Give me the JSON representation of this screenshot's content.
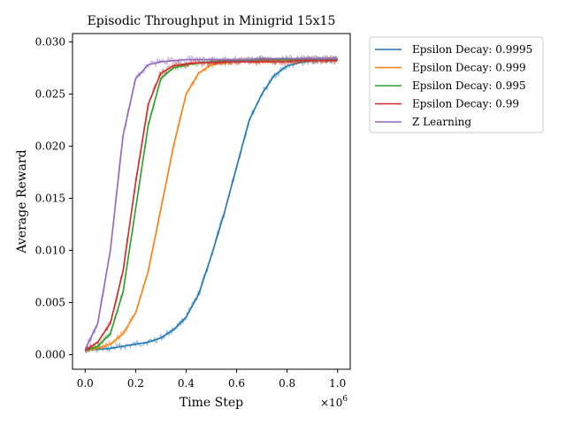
{
  "chart_data": {
    "type": "line",
    "title": "Episodic Throughput in Minigrid 15x15",
    "xlabel": "Time Step",
    "ylabel": "Average Reward",
    "x_multiplier_label": "×10^6",
    "x_multiplier_base": "×10",
    "x_multiplier_exp": "6",
    "xlim": [
      -0.05,
      1.05
    ],
    "ylim": [
      -0.0014,
      0.0308
    ],
    "x_ticks": [
      0.0,
      0.2,
      0.4,
      0.6,
      0.8,
      1.0
    ],
    "x_tick_labels": [
      "0.0",
      "0.2",
      "0.4",
      "0.6",
      "0.8",
      "1.0"
    ],
    "y_ticks": [
      0.0,
      0.005,
      0.01,
      0.015,
      0.02,
      0.025,
      0.03
    ],
    "y_tick_labels": [
      "0.000",
      "0.005",
      "0.010",
      "0.015",
      "0.020",
      "0.025",
      "0.030"
    ],
    "grid": false,
    "legend_position": "outside-right",
    "x": [
      0.0,
      0.05,
      0.1,
      0.15,
      0.2,
      0.25,
      0.3,
      0.35,
      0.4,
      0.45,
      0.5,
      0.55,
      0.6,
      0.65,
      0.7,
      0.75,
      0.8,
      0.85,
      0.9,
      0.95,
      1.0
    ],
    "series": [
      {
        "name": "Epsilon Decay: 0.9995",
        "color": "#1f77b4",
        "values": [
          0.0005,
          0.0005,
          0.0006,
          0.0008,
          0.001,
          0.0012,
          0.0016,
          0.0024,
          0.0036,
          0.0058,
          0.0095,
          0.0135,
          0.018,
          0.0225,
          0.025,
          0.0268,
          0.0277,
          0.028,
          0.0282,
          0.0283,
          0.0283
        ]
      },
      {
        "name": "Epsilon Decay: 0.999",
        "color": "#ff7f0e",
        "values": [
          0.0004,
          0.0006,
          0.001,
          0.002,
          0.004,
          0.008,
          0.014,
          0.02,
          0.025,
          0.027,
          0.0278,
          0.028,
          0.0281,
          0.0282,
          0.0282,
          0.0282,
          0.0282,
          0.0282,
          0.0283,
          0.0283,
          0.0283
        ]
      },
      {
        "name": "Epsilon Decay: 0.995",
        "color": "#2ca02c",
        "values": [
          0.0004,
          0.0008,
          0.002,
          0.006,
          0.014,
          0.022,
          0.0265,
          0.0275,
          0.0278,
          0.028,
          0.0281,
          0.0282,
          0.0282,
          0.0282,
          0.0283,
          0.0283,
          0.0283,
          0.0283,
          0.0283,
          0.0283,
          0.0283
        ]
      },
      {
        "name": "Epsilon Decay: 0.99",
        "color": "#d62728",
        "values": [
          0.0004,
          0.0012,
          0.003,
          0.008,
          0.0165,
          0.024,
          0.027,
          0.0277,
          0.0279,
          0.028,
          0.028,
          0.0281,
          0.0281,
          0.0281,
          0.0281,
          0.0281,
          0.0281,
          0.0282,
          0.0282,
          0.0282,
          0.0282
        ]
      },
      {
        "name": "Z Learning",
        "color": "#9467bd",
        "values": [
          0.0005,
          0.003,
          0.01,
          0.021,
          0.0265,
          0.0278,
          0.0281,
          0.0282,
          0.0283,
          0.0283,
          0.0283,
          0.0283,
          0.0283,
          0.0283,
          0.0284,
          0.0284,
          0.0284,
          0.0284,
          0.0284,
          0.0284,
          0.0284
        ]
      }
    ]
  }
}
